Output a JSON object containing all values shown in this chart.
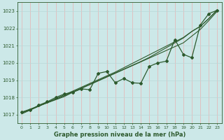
{
  "title": "Graphe pression niveau de la mer (hPa)",
  "bg_color": "#cce8e8",
  "grid_color_v": "#e8b0b0",
  "grid_color_h": "#b8d8d8",
  "line_color": "#2d5a2d",
  "x_labels": [
    "0",
    "1",
    "2",
    "3",
    "4",
    "5",
    "6",
    "7",
    "8",
    "9",
    "10",
    "11",
    "12",
    "13",
    "14",
    "15",
    "16",
    "17",
    "18",
    "19",
    "20",
    "21",
    "22",
    "23"
  ],
  "ylim": [
    1016.5,
    1023.5
  ],
  "yticks": [
    1017,
    1018,
    1019,
    1020,
    1021,
    1022,
    1023
  ],
  "actual_data": [
    1017.15,
    1017.28,
    1017.55,
    1017.75,
    1018.0,
    1018.2,
    1018.3,
    1018.5,
    1018.45,
    1019.4,
    1019.5,
    1018.85,
    1019.1,
    1018.85,
    1018.82,
    1019.8,
    1020.0,
    1020.1,
    1021.35,
    1020.5,
    1020.3,
    1022.2,
    1022.85,
    1023.05
  ],
  "trend1": [
    1017.15,
    1017.33,
    1017.51,
    1017.69,
    1017.87,
    1018.05,
    1018.3,
    1018.52,
    1018.74,
    1018.96,
    1019.18,
    1019.4,
    1019.62,
    1019.84,
    1020.06,
    1020.28,
    1020.5,
    1020.72,
    1020.94,
    1021.16,
    1021.55,
    1021.94,
    1022.45,
    1023.0
  ],
  "trend2": [
    1017.1,
    1017.3,
    1017.5,
    1017.7,
    1017.9,
    1018.1,
    1018.32,
    1018.54,
    1018.76,
    1018.98,
    1019.2,
    1019.42,
    1019.64,
    1019.86,
    1020.08,
    1020.32,
    1020.6,
    1020.88,
    1021.16,
    1021.44,
    1021.82,
    1022.12,
    1022.56,
    1023.06
  ],
  "trend3": [
    1017.05,
    1017.27,
    1017.49,
    1017.71,
    1017.93,
    1018.15,
    1018.37,
    1018.59,
    1018.81,
    1019.03,
    1019.25,
    1019.47,
    1019.72,
    1019.97,
    1020.22,
    1020.47,
    1020.72,
    1020.97,
    1021.22,
    1021.47,
    1021.82,
    1022.12,
    1022.57,
    1023.07
  ]
}
